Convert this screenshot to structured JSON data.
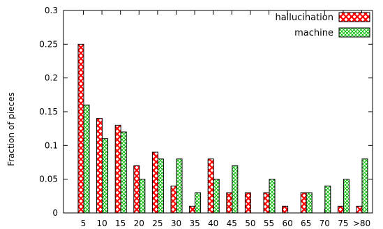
{
  "chart_data": {
    "type": "bar",
    "title": "",
    "xlabel": "",
    "ylabel": "Fraction of pieces",
    "ylim": [
      0,
      0.3
    ],
    "yticks": [
      "0",
      "0.05",
      "0.1",
      "0.15",
      "0.2",
      "0.25",
      "0.3"
    ],
    "categories": [
      "5",
      "10",
      "15",
      "20",
      "25",
      "30",
      "35",
      "40",
      "45",
      "50",
      "55",
      "60",
      "65",
      "70",
      "75",
      ">80"
    ],
    "legend_position": "top-right",
    "grid": false,
    "series": [
      {
        "name": "hallucination",
        "color": "#ff0000",
        "pattern": "red-cross-hatch",
        "values": [
          0.25,
          0.14,
          0.13,
          0.07,
          0.09,
          0.04,
          0.01,
          0.08,
          0.03,
          0.03,
          0.03,
          0.01,
          0.03,
          0.0,
          0.01,
          0.01
        ]
      },
      {
        "name": "machine",
        "color": "#00cc00",
        "pattern": "green-fine-crosshatch",
        "values": [
          0.16,
          0.11,
          0.12,
          0.05,
          0.08,
          0.08,
          0.03,
          0.05,
          0.07,
          0.0,
          0.05,
          0.0,
          0.03,
          0.04,
          0.05,
          0.08
        ]
      }
    ]
  }
}
